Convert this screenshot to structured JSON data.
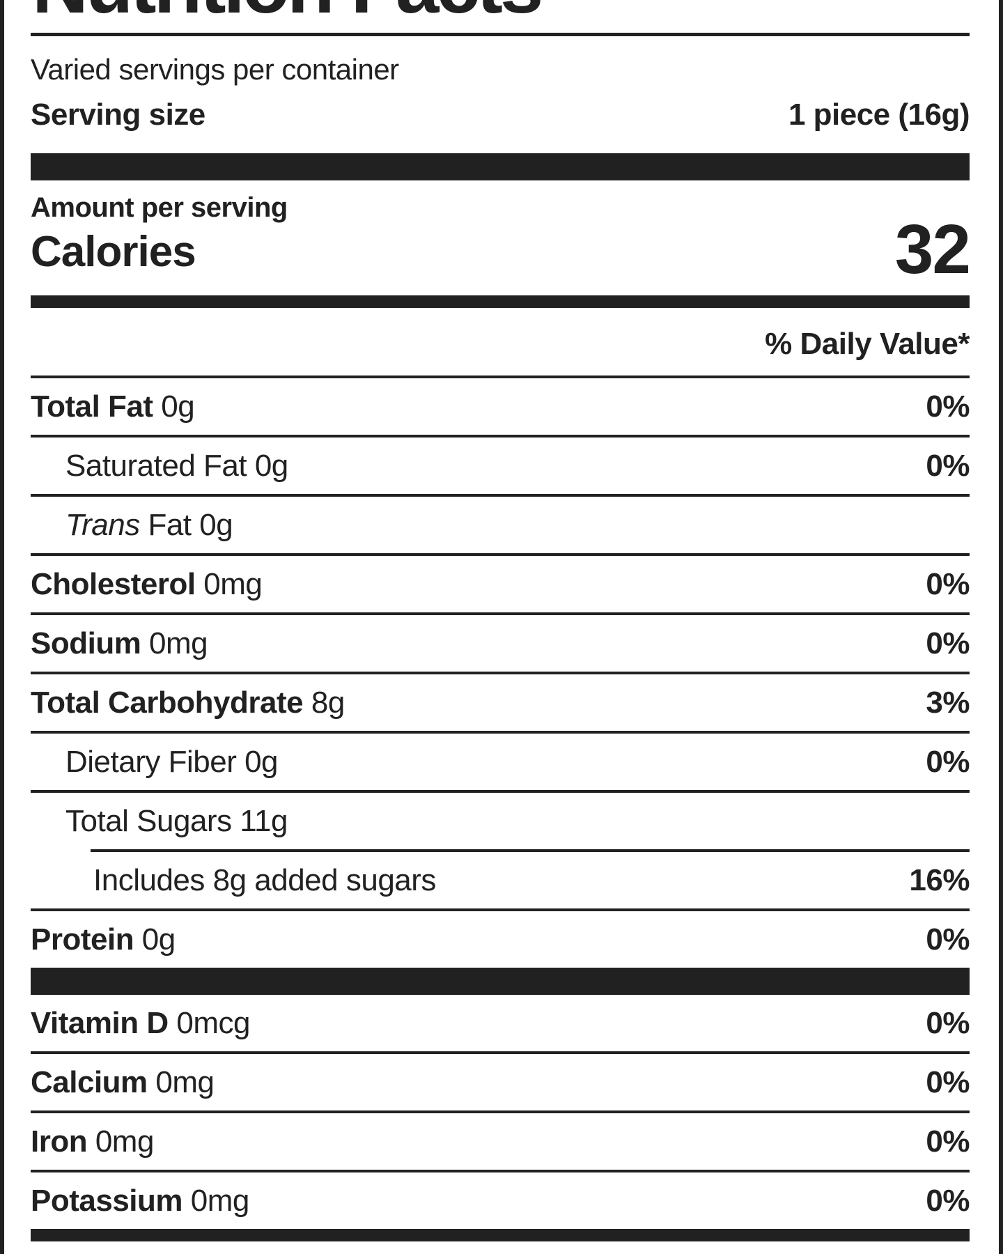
{
  "label": {
    "title": "Nutrition Facts",
    "servings_per_container": "Varied servings per container",
    "serving_size_label": "Serving size",
    "serving_size_value": "1 piece (16g)",
    "amount_per_serving": "Amount per serving",
    "calories_label": "Calories",
    "calories_value": "32",
    "daily_value_header": "% Daily Value*",
    "colors": {
      "ink": "#212121",
      "paper": "#ffffff"
    },
    "rows": [
      {
        "name": "Total Fat",
        "amount": "0g",
        "dv": "0%",
        "indent": 0,
        "bold": true
      },
      {
        "name": "Saturated Fat",
        "amount": "0g",
        "dv": "0%",
        "indent": 1,
        "bold": false
      },
      {
        "name": "Trans",
        "name_italic": true,
        "name_suffix": "Fat",
        "amount": "0g",
        "dv": "",
        "indent": 1,
        "bold": false
      },
      {
        "name": "Cholesterol",
        "amount": "0mg",
        "dv": "0%",
        "indent": 0,
        "bold": true
      },
      {
        "name": "Sodium",
        "amount": "0mg",
        "dv": "0%",
        "indent": 0,
        "bold": true
      },
      {
        "name": "Total Carbohydrate",
        "amount": "8g",
        "dv": "3%",
        "indent": 0,
        "bold": true
      },
      {
        "name": "Dietary Fiber",
        "amount": "0g",
        "dv": "0%",
        "indent": 1,
        "bold": false
      },
      {
        "name": "Total Sugars",
        "amount": "11g",
        "dv": "",
        "indent": 1,
        "bold": false
      },
      {
        "name": "Includes 8g added sugars",
        "amount": "",
        "dv": "16%",
        "indent": 2,
        "bold": false,
        "rule_indent": true
      },
      {
        "name": "Protein",
        "amount": "0g",
        "dv": "0%",
        "indent": 0,
        "bold": true
      }
    ],
    "micronutrients": [
      {
        "name": "Vitamin D",
        "amount": "0mcg",
        "dv": "0%"
      },
      {
        "name": "Calcium",
        "amount": "0mg",
        "dv": "0%"
      },
      {
        "name": "Iron",
        "amount": "0mg",
        "dv": "0%"
      },
      {
        "name": "Potassium",
        "amount": "0mg",
        "dv": "0%"
      }
    ]
  }
}
